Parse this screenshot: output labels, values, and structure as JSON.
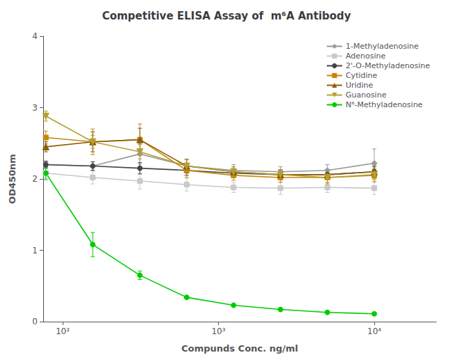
{
  "chart_data": {
    "type": "line",
    "title": "Competitive ELISA Assay of  m⁶A Antibody",
    "x_label": "Compunds Conc. ng/ml",
    "y_label": "OD450nm",
    "log": "x",
    "grid": false,
    "legend": "upper right",
    "xlim": [
      75,
      25000
    ],
    "xticks": [
      {
        "value": 100,
        "label": "10²"
      },
      {
        "value": 1000,
        "label": "10³"
      },
      {
        "value": 10000,
        "label": "10⁴"
      }
    ],
    "ylim": [
      0,
      4
    ],
    "yticks": [
      0,
      1,
      2,
      3,
      4
    ],
    "x": [
      78,
      156,
      313,
      625,
      1250,
      2500,
      5000,
      10000
    ],
    "series": [
      {
        "name": "1-Methyladenosine",
        "color": "#999999",
        "marker": "diamond",
        "values": [
          2.2,
          2.18,
          2.35,
          2.18,
          2.12,
          2.1,
          2.12,
          2.22
        ],
        "yerr": [
          0.04,
          0.06,
          0.14,
          0.1,
          0.08,
          0.07,
          0.08,
          0.2
        ]
      },
      {
        "name": "Adenosine",
        "color": "#c8c8c8",
        "marker": "square",
        "values": [
          2.08,
          2.02,
          1.97,
          1.92,
          1.88,
          1.87,
          1.88,
          1.87
        ],
        "yerr": [
          0.07,
          0.09,
          0.11,
          0.09,
          0.07,
          0.09,
          0.07,
          0.09
        ]
      },
      {
        "name": "2'-O-Methyladenosine",
        "color": "#444444",
        "marker": "circle",
        "values": [
          2.2,
          2.18,
          2.15,
          2.12,
          2.08,
          2.06,
          2.06,
          2.1
        ],
        "yerr": [
          0.05,
          0.06,
          0.08,
          0.07,
          0.05,
          0.06,
          0.06,
          0.07
        ]
      },
      {
        "name": "Cytidine",
        "color": "#c8860a",
        "marker": "square",
        "values": [
          2.58,
          2.52,
          2.55,
          2.12,
          2.05,
          2.02,
          2.02,
          2.05
        ],
        "yerr": [
          0.09,
          0.18,
          0.22,
          0.1,
          0.07,
          0.07,
          0.09,
          0.09
        ]
      },
      {
        "name": "Uridine",
        "color": "#8B5E0A",
        "marker": "triangle",
        "values": [
          2.45,
          2.52,
          2.55,
          2.18,
          2.1,
          2.06,
          2.06,
          2.1
        ],
        "yerr": [
          0.07,
          0.14,
          0.16,
          0.09,
          0.07,
          0.07,
          0.07,
          0.09
        ]
      },
      {
        "name": "Guanosine",
        "color": "#b5a030",
        "marker": "triangle_down",
        "values": [
          2.88,
          2.52,
          2.38,
          2.18,
          2.1,
          2.06,
          2.02,
          2.06
        ],
        "yerr": [
          0.07,
          0.09,
          0.1,
          0.09,
          0.07,
          0.06,
          0.07,
          0.07
        ]
      },
      {
        "name": "N⁶-Methyladenosine",
        "color": "#00cc00",
        "marker": "circle",
        "values": [
          2.08,
          1.08,
          0.65,
          0.34,
          0.23,
          0.17,
          0.13,
          0.11
        ],
        "yerr": [
          0.09,
          0.17,
          0.06,
          0.02,
          0.02,
          0.02,
          0.02,
          0.02
        ]
      }
    ]
  }
}
